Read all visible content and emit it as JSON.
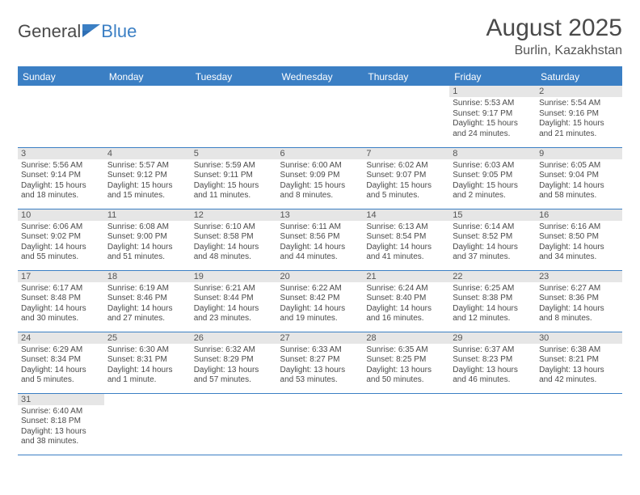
{
  "logo": {
    "part1": "General",
    "part2": "Blue"
  },
  "title": "August 2025",
  "location": "Burlin, Kazakhstan",
  "weekday_header_bg": "#3b7fc4",
  "weekday_header_fg": "#ffffff",
  "daynum_bg": "#e6e6e6",
  "cell_border_color": "#3b7fc4",
  "weekdays": [
    "Sunday",
    "Monday",
    "Tuesday",
    "Wednesday",
    "Thursday",
    "Friday",
    "Saturday"
  ],
  "grid": [
    [
      null,
      null,
      null,
      null,
      null,
      {
        "d": "1",
        "sr": "Sunrise: 5:53 AM",
        "ss": "Sunset: 9:17 PM",
        "dl1": "Daylight: 15 hours",
        "dl2": "and 24 minutes."
      },
      {
        "d": "2",
        "sr": "Sunrise: 5:54 AM",
        "ss": "Sunset: 9:16 PM",
        "dl1": "Daylight: 15 hours",
        "dl2": "and 21 minutes."
      }
    ],
    [
      {
        "d": "3",
        "sr": "Sunrise: 5:56 AM",
        "ss": "Sunset: 9:14 PM",
        "dl1": "Daylight: 15 hours",
        "dl2": "and 18 minutes."
      },
      {
        "d": "4",
        "sr": "Sunrise: 5:57 AM",
        "ss": "Sunset: 9:12 PM",
        "dl1": "Daylight: 15 hours",
        "dl2": "and 15 minutes."
      },
      {
        "d": "5",
        "sr": "Sunrise: 5:59 AM",
        "ss": "Sunset: 9:11 PM",
        "dl1": "Daylight: 15 hours",
        "dl2": "and 11 minutes."
      },
      {
        "d": "6",
        "sr": "Sunrise: 6:00 AM",
        "ss": "Sunset: 9:09 PM",
        "dl1": "Daylight: 15 hours",
        "dl2": "and 8 minutes."
      },
      {
        "d": "7",
        "sr": "Sunrise: 6:02 AM",
        "ss": "Sunset: 9:07 PM",
        "dl1": "Daylight: 15 hours",
        "dl2": "and 5 minutes."
      },
      {
        "d": "8",
        "sr": "Sunrise: 6:03 AM",
        "ss": "Sunset: 9:05 PM",
        "dl1": "Daylight: 15 hours",
        "dl2": "and 2 minutes."
      },
      {
        "d": "9",
        "sr": "Sunrise: 6:05 AM",
        "ss": "Sunset: 9:04 PM",
        "dl1": "Daylight: 14 hours",
        "dl2": "and 58 minutes."
      }
    ],
    [
      {
        "d": "10",
        "sr": "Sunrise: 6:06 AM",
        "ss": "Sunset: 9:02 PM",
        "dl1": "Daylight: 14 hours",
        "dl2": "and 55 minutes."
      },
      {
        "d": "11",
        "sr": "Sunrise: 6:08 AM",
        "ss": "Sunset: 9:00 PM",
        "dl1": "Daylight: 14 hours",
        "dl2": "and 51 minutes."
      },
      {
        "d": "12",
        "sr": "Sunrise: 6:10 AM",
        "ss": "Sunset: 8:58 PM",
        "dl1": "Daylight: 14 hours",
        "dl2": "and 48 minutes."
      },
      {
        "d": "13",
        "sr": "Sunrise: 6:11 AM",
        "ss": "Sunset: 8:56 PM",
        "dl1": "Daylight: 14 hours",
        "dl2": "and 44 minutes."
      },
      {
        "d": "14",
        "sr": "Sunrise: 6:13 AM",
        "ss": "Sunset: 8:54 PM",
        "dl1": "Daylight: 14 hours",
        "dl2": "and 41 minutes."
      },
      {
        "d": "15",
        "sr": "Sunrise: 6:14 AM",
        "ss": "Sunset: 8:52 PM",
        "dl1": "Daylight: 14 hours",
        "dl2": "and 37 minutes."
      },
      {
        "d": "16",
        "sr": "Sunrise: 6:16 AM",
        "ss": "Sunset: 8:50 PM",
        "dl1": "Daylight: 14 hours",
        "dl2": "and 34 minutes."
      }
    ],
    [
      {
        "d": "17",
        "sr": "Sunrise: 6:17 AM",
        "ss": "Sunset: 8:48 PM",
        "dl1": "Daylight: 14 hours",
        "dl2": "and 30 minutes."
      },
      {
        "d": "18",
        "sr": "Sunrise: 6:19 AM",
        "ss": "Sunset: 8:46 PM",
        "dl1": "Daylight: 14 hours",
        "dl2": "and 27 minutes."
      },
      {
        "d": "19",
        "sr": "Sunrise: 6:21 AM",
        "ss": "Sunset: 8:44 PM",
        "dl1": "Daylight: 14 hours",
        "dl2": "and 23 minutes."
      },
      {
        "d": "20",
        "sr": "Sunrise: 6:22 AM",
        "ss": "Sunset: 8:42 PM",
        "dl1": "Daylight: 14 hours",
        "dl2": "and 19 minutes."
      },
      {
        "d": "21",
        "sr": "Sunrise: 6:24 AM",
        "ss": "Sunset: 8:40 PM",
        "dl1": "Daylight: 14 hours",
        "dl2": "and 16 minutes."
      },
      {
        "d": "22",
        "sr": "Sunrise: 6:25 AM",
        "ss": "Sunset: 8:38 PM",
        "dl1": "Daylight: 14 hours",
        "dl2": "and 12 minutes."
      },
      {
        "d": "23",
        "sr": "Sunrise: 6:27 AM",
        "ss": "Sunset: 8:36 PM",
        "dl1": "Daylight: 14 hours",
        "dl2": "and 8 minutes."
      }
    ],
    [
      {
        "d": "24",
        "sr": "Sunrise: 6:29 AM",
        "ss": "Sunset: 8:34 PM",
        "dl1": "Daylight: 14 hours",
        "dl2": "and 5 minutes."
      },
      {
        "d": "25",
        "sr": "Sunrise: 6:30 AM",
        "ss": "Sunset: 8:31 PM",
        "dl1": "Daylight: 14 hours",
        "dl2": "and 1 minute."
      },
      {
        "d": "26",
        "sr": "Sunrise: 6:32 AM",
        "ss": "Sunset: 8:29 PM",
        "dl1": "Daylight: 13 hours",
        "dl2": "and 57 minutes."
      },
      {
        "d": "27",
        "sr": "Sunrise: 6:33 AM",
        "ss": "Sunset: 8:27 PM",
        "dl1": "Daylight: 13 hours",
        "dl2": "and 53 minutes."
      },
      {
        "d": "28",
        "sr": "Sunrise: 6:35 AM",
        "ss": "Sunset: 8:25 PM",
        "dl1": "Daylight: 13 hours",
        "dl2": "and 50 minutes."
      },
      {
        "d": "29",
        "sr": "Sunrise: 6:37 AM",
        "ss": "Sunset: 8:23 PM",
        "dl1": "Daylight: 13 hours",
        "dl2": "and 46 minutes."
      },
      {
        "d": "30",
        "sr": "Sunrise: 6:38 AM",
        "ss": "Sunset: 8:21 PM",
        "dl1": "Daylight: 13 hours",
        "dl2": "and 42 minutes."
      }
    ],
    [
      {
        "d": "31",
        "sr": "Sunrise: 6:40 AM",
        "ss": "Sunset: 8:18 PM",
        "dl1": "Daylight: 13 hours",
        "dl2": "and 38 minutes."
      },
      null,
      null,
      null,
      null,
      null,
      null
    ]
  ]
}
